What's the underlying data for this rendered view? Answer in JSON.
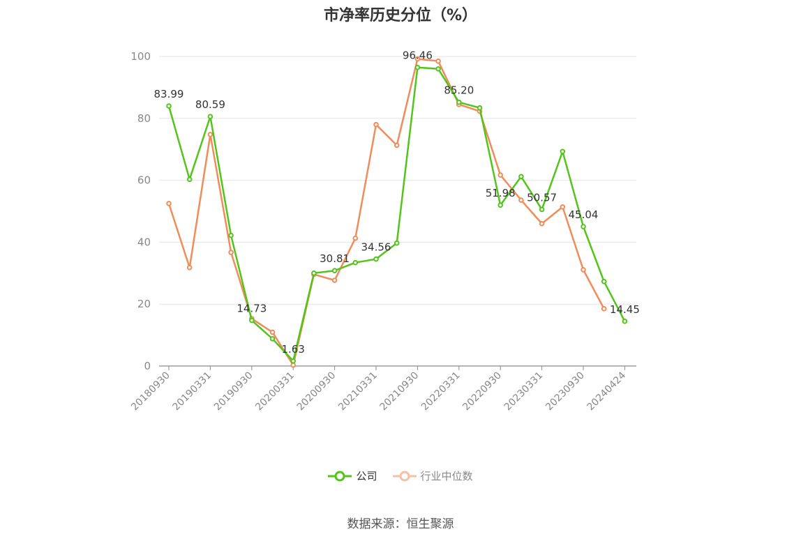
{
  "chart_data": {
    "type": "line",
    "title": "市净率历史分位（%）",
    "ylim": [
      0,
      100
    ],
    "yticks": [
      0,
      20,
      40,
      60,
      80,
      100
    ],
    "grid": true,
    "x_tick_labels": [
      "20180930",
      "20190331",
      "20190930",
      "20200331",
      "20200930",
      "20210331",
      "20210930",
      "20220331",
      "20220930",
      "20230331",
      "20230930",
      "20240424"
    ],
    "x_tick_indices": [
      0,
      2,
      4,
      6,
      8,
      10,
      12,
      14,
      16,
      18,
      20,
      22
    ],
    "point_count": 23,
    "legend_position": "bottom",
    "series": [
      {
        "name": "公司",
        "color": "#52c41a",
        "values": [
          83.99,
          60.3,
          80.59,
          42.2,
          14.73,
          8.8,
          1.63,
          30.0,
          30.81,
          33.4,
          34.56,
          39.7,
          96.46,
          96.0,
          85.2,
          83.4,
          51.98,
          61.2,
          50.57,
          69.3,
          45.04,
          27.3,
          14.45
        ],
        "labels": {
          "0": "83.99",
          "2": "80.59",
          "4": "14.73",
          "6": "1.63",
          "8": "30.81",
          "10": "34.56",
          "12": "96.46",
          "14": "85.20",
          "16": "51.98",
          "18": "50.57",
          "20": "45.04",
          "22": "14.45"
        }
      },
      {
        "name": "行业中位数",
        "color": "#f08c5a",
        "values": [
          52.5,
          31.8,
          74.8,
          36.7,
          15.3,
          10.9,
          0.3,
          29.6,
          27.7,
          41.3,
          78.0,
          71.3,
          99.2,
          98.5,
          84.5,
          82.3,
          61.7,
          53.6,
          46.0,
          51.4,
          31.1,
          18.5,
          null
        ]
      }
    ]
  },
  "footer": {
    "source": "数据来源：恒生聚源"
  }
}
